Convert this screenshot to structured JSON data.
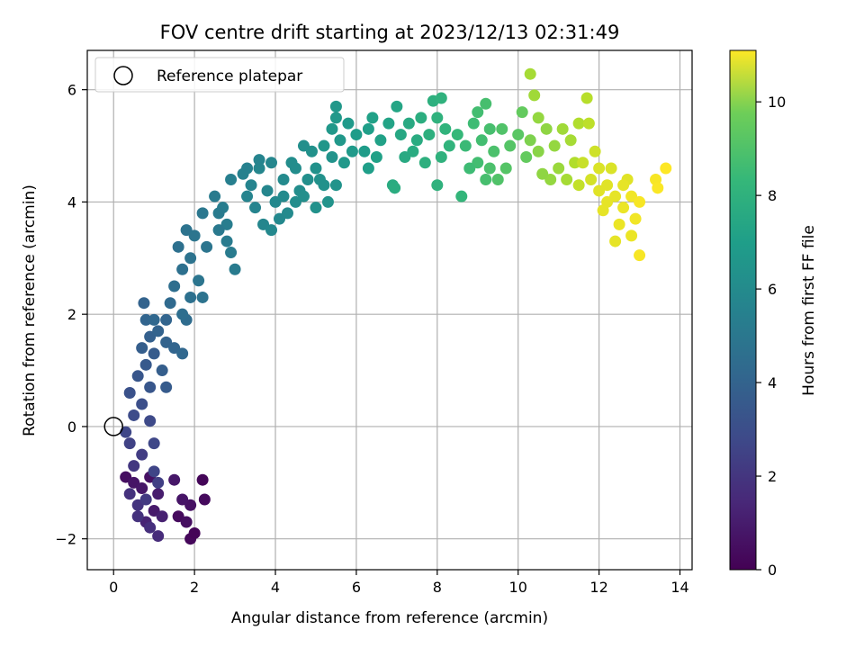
{
  "chart_data": {
    "type": "scatter",
    "title": "FOV centre drift starting at 2023/12/13 02:31:49",
    "xlabel": "Angular distance from reference (arcmin)",
    "ylabel": "Rotation from reference (arcmin)",
    "xlim": [
      -0.65,
      14.3
    ],
    "ylim": [
      -2.55,
      6.7
    ],
    "x_ticks": [
      0,
      2,
      4,
      6,
      8,
      10,
      12,
      14
    ],
    "y_ticks": [
      -2,
      0,
      2,
      4,
      6
    ],
    "x_tick_labels": [
      "0",
      "2",
      "4",
      "6",
      "8",
      "10",
      "12",
      "14"
    ],
    "y_tick_labels": [
      "−2",
      "0",
      "2",
      "4",
      "6"
    ],
    "grid": true,
    "legend": {
      "placement": "top-left",
      "entries": [
        {
          "label": "Reference platepar",
          "marker": "open-circle"
        }
      ]
    },
    "reference_point": {
      "x": 0,
      "y": 0
    },
    "colorbar": {
      "label": "Hours from first FF file",
      "range": [
        0,
        11.1
      ],
      "ticks": [
        0,
        2,
        4,
        6,
        8,
        10
      ],
      "tick_labels": [
        "0",
        "2",
        "4",
        "6",
        "8",
        "10"
      ],
      "colormap": "viridis"
    },
    "series": [
      {
        "color_by": "hours",
        "points": [
          [
            0.3,
            -0.9,
            0.4
          ],
          [
            0.5,
            -1.0,
            0.6
          ],
          [
            0.7,
            -1.1,
            0.7
          ],
          [
            0.9,
            -0.9,
            0.5
          ],
          [
            1.1,
            -1.2,
            0.9
          ],
          [
            1.0,
            -1.5,
            0.8
          ],
          [
            1.6,
            -1.6,
            0.3
          ],
          [
            1.8,
            -1.7,
            0.4
          ],
          [
            1.9,
            -2.0,
            0.2
          ],
          [
            2.0,
            -1.9,
            0.1
          ],
          [
            2.2,
            -0.95,
            0.15
          ],
          [
            2.25,
            -1.3,
            0.3
          ],
          [
            1.9,
            -1.4,
            0.5
          ],
          [
            1.7,
            -1.3,
            0.6
          ],
          [
            1.5,
            -0.95,
            0.7
          ],
          [
            1.2,
            -1.6,
            1.0
          ],
          [
            0.8,
            -1.7,
            1.1
          ],
          [
            0.4,
            -1.2,
            1.6
          ],
          [
            0.6,
            -1.4,
            1.7
          ],
          [
            0.8,
            -1.3,
            1.9
          ],
          [
            0.5,
            -0.7,
            1.8
          ],
          [
            0.7,
            -0.5,
            2.0
          ],
          [
            0.4,
            -0.3,
            2.2
          ],
          [
            1.0,
            -0.8,
            2.3
          ],
          [
            1.1,
            -1.0,
            2.1
          ],
          [
            0.9,
            -1.8,
            1.5
          ],
          [
            1.1,
            -1.95,
            1.4
          ],
          [
            0.6,
            -1.6,
            1.6
          ],
          [
            0.3,
            -0.1,
            2.4
          ],
          [
            0.5,
            0.2,
            2.6
          ],
          [
            0.7,
            0.4,
            2.7
          ],
          [
            0.9,
            0.1,
            2.5
          ],
          [
            1.0,
            -0.3,
            2.4
          ],
          [
            0.4,
            0.6,
            2.8
          ],
          [
            0.6,
            0.9,
            3.0
          ],
          [
            0.8,
            1.1,
            3.1
          ],
          [
            1.0,
            1.3,
            3.2
          ],
          [
            1.2,
            1.0,
            3.3
          ],
          [
            1.3,
            0.7,
            3.2
          ],
          [
            0.9,
            0.7,
            3.0
          ],
          [
            0.7,
            1.4,
            3.3
          ],
          [
            0.9,
            1.6,
            3.4
          ],
          [
            1.1,
            1.7,
            3.5
          ],
          [
            1.3,
            1.5,
            3.5
          ],
          [
            1.5,
            1.4,
            3.6
          ],
          [
            1.7,
            1.3,
            3.7
          ],
          [
            0.8,
            1.9,
            3.6
          ],
          [
            1.0,
            1.9,
            3.7
          ],
          [
            0.75,
            2.2,
            3.5
          ],
          [
            1.3,
            1.9,
            3.6
          ],
          [
            1.8,
            1.9,
            3.9
          ],
          [
            1.4,
            2.2,
            3.8
          ],
          [
            1.5,
            2.5,
            4.0
          ],
          [
            1.7,
            2.8,
            4.1
          ],
          [
            1.9,
            3.0,
            4.2
          ],
          [
            1.6,
            3.2,
            4.1
          ],
          [
            1.8,
            3.5,
            4.2
          ],
          [
            2.0,
            3.4,
            4.3
          ],
          [
            2.2,
            3.8,
            4.4
          ],
          [
            2.3,
            3.2,
            4.3
          ],
          [
            2.1,
            2.6,
            4.3
          ],
          [
            2.2,
            2.3,
            4.2
          ],
          [
            1.9,
            2.3,
            4.1
          ],
          [
            1.7,
            2.0,
            4.0
          ],
          [
            2.5,
            4.1,
            4.6
          ],
          [
            2.7,
            3.9,
            4.7
          ],
          [
            2.9,
            4.4,
            4.8
          ],
          [
            2.8,
            3.6,
            4.7
          ],
          [
            2.9,
            3.1,
            4.6
          ],
          [
            3.0,
            2.8,
            4.6
          ],
          [
            2.6,
            3.5,
            4.5
          ],
          [
            2.8,
            3.3,
            4.6
          ],
          [
            2.6,
            3.8,
            4.6
          ],
          [
            3.2,
            4.5,
            4.9
          ],
          [
            3.4,
            4.3,
            5.0
          ],
          [
            3.6,
            4.6,
            5.1
          ],
          [
            3.8,
            4.2,
            5.1
          ],
          [
            3.5,
            3.9,
            5.0
          ],
          [
            3.7,
            3.6,
            5.1
          ],
          [
            3.9,
            3.5,
            5.2
          ],
          [
            4.0,
            4.0,
            5.2
          ],
          [
            4.2,
            4.4,
            5.3
          ],
          [
            4.4,
            4.7,
            5.4
          ],
          [
            4.6,
            4.2,
            5.4
          ],
          [
            4.3,
            3.8,
            5.3
          ],
          [
            4.1,
            3.7,
            5.2
          ],
          [
            4.5,
            4.0,
            5.4
          ],
          [
            4.8,
            4.4,
            5.5
          ],
          [
            5.0,
            4.6,
            5.6
          ],
          [
            5.2,
            4.3,
            5.6
          ],
          [
            5.4,
            4.8,
            5.7
          ],
          [
            4.9,
            4.9,
            5.6
          ],
          [
            4.7,
            4.1,
            5.5
          ],
          [
            5.0,
            3.9,
            5.6
          ],
          [
            5.3,
            4.0,
            5.7
          ],
          [
            5.5,
            4.3,
            5.7
          ],
          [
            3.3,
            4.6,
            4.9
          ],
          [
            3.6,
            4.75,
            5.0
          ],
          [
            3.3,
            4.1,
            5.0
          ],
          [
            4.7,
            5.0,
            5.5
          ],
          [
            4.5,
            4.6,
            5.4
          ],
          [
            4.2,
            4.1,
            5.3
          ],
          [
            3.9,
            4.7,
            5.1
          ],
          [
            5.2,
            5.0,
            5.8
          ],
          [
            5.4,
            5.3,
            5.9
          ],
          [
            5.6,
            5.1,
            5.9
          ],
          [
            5.8,
            5.4,
            6.0
          ],
          [
            6.0,
            5.2,
            6.1
          ],
          [
            6.2,
            4.9,
            6.1
          ],
          [
            5.5,
            5.5,
            5.9
          ],
          [
            5.9,
            4.9,
            6.0
          ],
          [
            5.7,
            4.7,
            5.9
          ],
          [
            6.3,
            5.3,
            6.2
          ],
          [
            6.4,
            5.5,
            6.3
          ],
          [
            6.6,
            5.1,
            6.3
          ],
          [
            6.8,
            5.4,
            6.4
          ],
          [
            7.0,
            5.7,
            6.5
          ],
          [
            6.5,
            4.8,
            6.3
          ],
          [
            6.3,
            4.6,
            6.2
          ],
          [
            5.5,
            5.7,
            5.9
          ],
          [
            5.1,
            4.4,
            5.6
          ],
          [
            6.9,
            4.3,
            6.8
          ],
          [
            6.95,
            4.25,
            6.85
          ],
          [
            7.1,
            5.2,
            6.6
          ],
          [
            7.3,
            5.4,
            6.7
          ],
          [
            7.5,
            5.1,
            6.8
          ],
          [
            7.6,
            5.5,
            6.9
          ],
          [
            7.8,
            5.2,
            7.0
          ],
          [
            8.0,
            5.5,
            7.1
          ],
          [
            8.2,
            5.3,
            7.2
          ],
          [
            8.3,
            5.0,
            7.2
          ],
          [
            8.1,
            4.8,
            7.1
          ],
          [
            8.0,
            4.3,
            7.1
          ],
          [
            8.6,
            4.1,
            7.3
          ],
          [
            7.7,
            4.7,
            7.0
          ],
          [
            7.4,
            4.9,
            6.8
          ],
          [
            7.2,
            4.8,
            6.7
          ],
          [
            7.9,
            5.8,
            7.0
          ],
          [
            8.1,
            5.85,
            7.1
          ],
          [
            8.5,
            5.2,
            7.4
          ],
          [
            8.7,
            5.0,
            7.5
          ],
          [
            8.9,
            5.4,
            7.6
          ],
          [
            9.1,
            5.1,
            7.7
          ],
          [
            9.3,
            5.3,
            7.8
          ],
          [
            9.0,
            4.7,
            7.7
          ],
          [
            9.2,
            4.4,
            7.8
          ],
          [
            8.8,
            4.6,
            7.6
          ],
          [
            9.4,
            4.9,
            7.9
          ],
          [
            9.6,
            5.3,
            8.0
          ],
          [
            9.8,
            5.0,
            8.1
          ],
          [
            10.0,
            5.2,
            8.2
          ],
          [
            10.2,
            4.8,
            8.4
          ],
          [
            9.7,
            4.6,
            8.1
          ],
          [
            9.5,
            4.4,
            8.0
          ],
          [
            9.3,
            4.6,
            7.9
          ],
          [
            9.0,
            5.6,
            7.7
          ],
          [
            9.2,
            5.75,
            7.8
          ],
          [
            10.1,
            5.6,
            8.4
          ],
          [
            10.3,
            6.28,
            9.6
          ],
          [
            10.4,
            5.9,
            9.5
          ],
          [
            10.5,
            5.5,
            9.3
          ],
          [
            10.7,
            5.3,
            9.2
          ],
          [
            10.9,
            5.0,
            9.3
          ],
          [
            11.1,
            5.3,
            9.5
          ],
          [
            11.3,
            5.1,
            9.6
          ],
          [
            11.5,
            5.4,
            9.8
          ],
          [
            11.7,
            5.85,
            9.9
          ],
          [
            11.75,
            5.4,
            10.0
          ],
          [
            11.0,
            4.6,
            9.4
          ],
          [
            10.8,
            4.4,
            9.3
          ],
          [
            10.6,
            4.5,
            9.2
          ],
          [
            11.2,
            4.4,
            9.6
          ],
          [
            11.4,
            4.7,
            9.8
          ],
          [
            10.5,
            4.9,
            9.1
          ],
          [
            10.3,
            5.1,
            8.9
          ],
          [
            11.6,
            4.7,
            10.2
          ],
          [
            11.8,
            4.4,
            10.4
          ],
          [
            12.0,
            4.6,
            10.5
          ],
          [
            12.2,
            4.3,
            10.6
          ],
          [
            12.4,
            4.1,
            10.7
          ],
          [
            12.6,
            3.9,
            10.8
          ],
          [
            12.7,
            4.4,
            10.6
          ],
          [
            12.8,
            4.1,
            10.9
          ],
          [
            12.9,
            3.7,
            10.9
          ],
          [
            13.0,
            4.0,
            11.0
          ],
          [
            12.5,
            3.6,
            10.8
          ],
          [
            12.4,
            3.3,
            10.7
          ],
          [
            12.8,
            3.4,
            10.8
          ],
          [
            13.0,
            3.05,
            11.0
          ],
          [
            13.4,
            4.4,
            11.0
          ],
          [
            13.45,
            4.25,
            11.05
          ],
          [
            13.65,
            4.6,
            11.1
          ],
          [
            12.2,
            4.0,
            10.7
          ],
          [
            12.0,
            4.2,
            10.6
          ],
          [
            11.9,
            4.9,
            10.3
          ],
          [
            12.3,
            4.6,
            10.5
          ],
          [
            11.5,
            4.3,
            10.1
          ],
          [
            12.6,
            4.3,
            10.7
          ],
          [
            12.1,
            3.85,
            10.7
          ]
        ]
      }
    ]
  }
}
